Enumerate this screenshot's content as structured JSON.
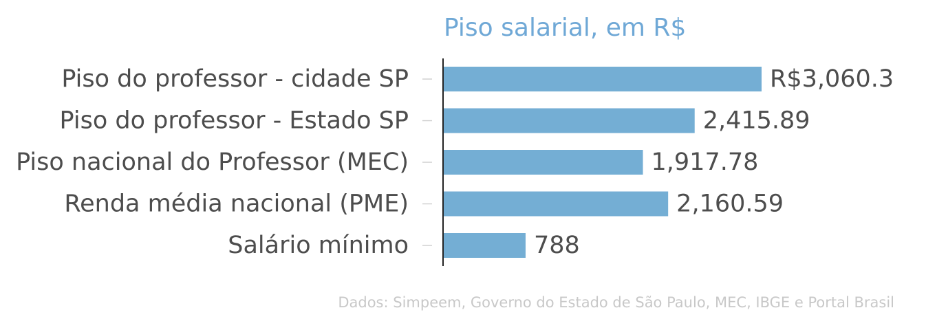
{
  "chart_data": {
    "type": "bar",
    "orientation": "horizontal",
    "title": "Piso salarial, em R$",
    "categories": [
      "Piso do professor - cidade SP",
      "Piso do professor - Estado SP",
      "Piso nacional do Professor (MEC)",
      "Renda média nacional (PME)",
      "Salário mínimo"
    ],
    "values": [
      3060.3,
      2415.89,
      1917.78,
      2160.59,
      788
    ],
    "value_labels": [
      "R$3,060.3",
      "2,415.89",
      "1,917.78",
      "2,160.59",
      "788"
    ],
    "xlim": [
      0,
      3060.3
    ],
    "grid": false,
    "bar_color": "#74aed4"
  },
  "source": "Dados: Simpeem, Governo do Estado de São Paulo, MEC, IBGE e Portal Brasil"
}
